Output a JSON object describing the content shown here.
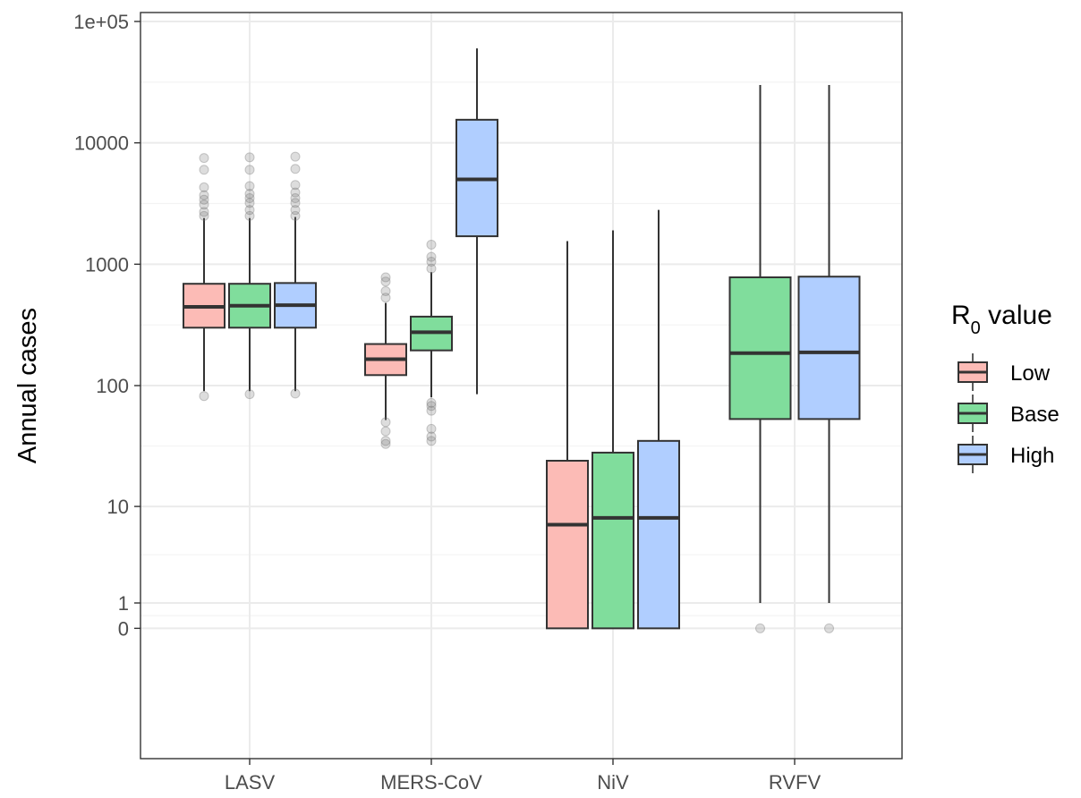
{
  "chart_data": {
    "type": "boxplot",
    "y_scale": "pseudo-log",
    "grid": true,
    "ylabel": "Annual cases",
    "xlabel": "",
    "y_ticks": [
      {
        "value": 0,
        "label": "0"
      },
      {
        "value": 1,
        "label": "1"
      },
      {
        "value": 10,
        "label": "10"
      },
      {
        "value": 100,
        "label": "100"
      },
      {
        "value": 1000,
        "label": "1000"
      },
      {
        "value": 10000,
        "label": "10000"
      },
      {
        "value": 100000,
        "label": "1e+05"
      }
    ],
    "categories": [
      "LASV",
      "MERS-CoV",
      "NiV",
      "RVFV"
    ],
    "legend": {
      "title_main": "R",
      "title_sub": "0",
      "title_rest": " value",
      "position": "right",
      "entries": [
        {
          "name": "Low",
          "color": "#F8766D"
        },
        {
          "name": "Base",
          "color": "#00BA38"
        },
        {
          "name": "High",
          "color": "#619CFF"
        }
      ]
    },
    "boxes": [
      {
        "category": "LASV",
        "group": "Low",
        "min": 90,
        "q1": 300,
        "median": 445,
        "q3": 690,
        "max": 2400,
        "outliers": [
          82,
          2500,
          2700,
          3100,
          3400,
          3700,
          4300,
          6000,
          7500
        ]
      },
      {
        "category": "LASV",
        "group": "Base",
        "min": 90,
        "q1": 300,
        "median": 455,
        "q3": 690,
        "max": 2400,
        "outliers": [
          85,
          2500,
          2800,
          3200,
          3500,
          3800,
          4400,
          6000,
          7600
        ]
      },
      {
        "category": "LASV",
        "group": "High",
        "min": 90,
        "q1": 300,
        "median": 460,
        "q3": 700,
        "max": 2450,
        "outliers": [
          86,
          2500,
          2800,
          3200,
          3500,
          3900,
          4500,
          6100,
          7700
        ]
      },
      {
        "category": "MERS-CoV",
        "group": "Low",
        "min": 52,
        "q1": 122,
        "median": 165,
        "q3": 220,
        "max": 480,
        "outliers": [
          33,
          35,
          42,
          50,
          530,
          600,
          720,
          780
        ]
      },
      {
        "category": "MERS-CoV",
        "group": "Base",
        "min": 80,
        "q1": 195,
        "median": 275,
        "q3": 370,
        "max": 860,
        "outliers": [
          35,
          38,
          44,
          62,
          68,
          72,
          920,
          1050,
          1150,
          1450
        ]
      },
      {
        "category": "MERS-CoV",
        "group": "High",
        "min": 85,
        "q1": 1700,
        "median": 5000,
        "q3": 15500,
        "max": 60000,
        "outliers": []
      },
      {
        "category": "NiV",
        "group": "Low",
        "min": 0,
        "q1": 0,
        "median": 7,
        "q3": 24,
        "max": 1550,
        "outliers": []
      },
      {
        "category": "NiV",
        "group": "Base",
        "min": 0,
        "q1": 0,
        "median": 8,
        "q3": 28,
        "max": 1900,
        "outliers": []
      },
      {
        "category": "NiV",
        "group": "High",
        "min": 0,
        "q1": 0,
        "median": 8,
        "q3": 35,
        "max": 2800,
        "outliers": []
      },
      {
        "category": "RVFV",
        "group": "Base",
        "min": 1,
        "q1": 53,
        "median": 185,
        "q3": 780,
        "max": 30000,
        "outliers": [
          0
        ]
      },
      {
        "category": "RVFV",
        "group": "High",
        "min": 1,
        "q1": 53,
        "median": 188,
        "q3": 790,
        "max": 30000,
        "outliers": [
          0
        ]
      }
    ]
  }
}
